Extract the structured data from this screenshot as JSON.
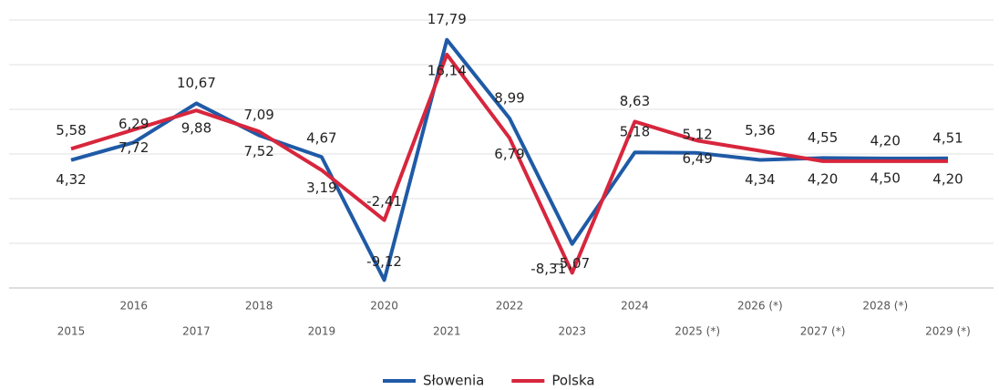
{
  "chart_data": {
    "type": "line",
    "categories": [
      "2015",
      "2016",
      "2017",
      "2018",
      "2019",
      "2020",
      "2021",
      "2022",
      "2023",
      "2024",
      "2025 (*)",
      "2026 (*)",
      "2027 (*)",
      "2028 (*)",
      "2029 (*)"
    ],
    "series": [
      {
        "name": "Słowenia",
        "color": "#1f5aa6",
        "values": [
          4.32,
          6.29,
          10.67,
          7.09,
          4.67,
          -9.12,
          17.79,
          8.99,
          -5.07,
          5.18,
          5.12,
          4.34,
          4.55,
          4.5,
          4.51
        ],
        "value_labels": [
          "4,32",
          "6,29",
          "10,67",
          "7,09",
          "4,67",
          "-9,12",
          "17,79",
          "8,99",
          "-5,07",
          "5,18",
          "5,12",
          "4,34",
          "4,55",
          "4,50",
          "4,51"
        ]
      },
      {
        "name": "Polska",
        "color": "#d7263d",
        "values": [
          5.58,
          7.72,
          9.88,
          7.52,
          3.19,
          -2.41,
          16.14,
          6.79,
          -8.31,
          8.63,
          6.49,
          5.36,
          4.2,
          4.2,
          4.2
        ],
        "value_labels": [
          "5,58",
          "7,72",
          "9,88",
          "7,52",
          "3,19",
          "-2,41",
          "16,14",
          "6,79",
          "-8,31",
          "8,63",
          "6,49",
          "5,36",
          "4,20",
          "4,20",
          "4,20"
        ]
      }
    ],
    "ylim": [
      -10,
      20
    ],
    "yticks": [
      -10,
      -5,
      0,
      5,
      10,
      15,
      20
    ],
    "grid": true,
    "legend": "bottom"
  }
}
